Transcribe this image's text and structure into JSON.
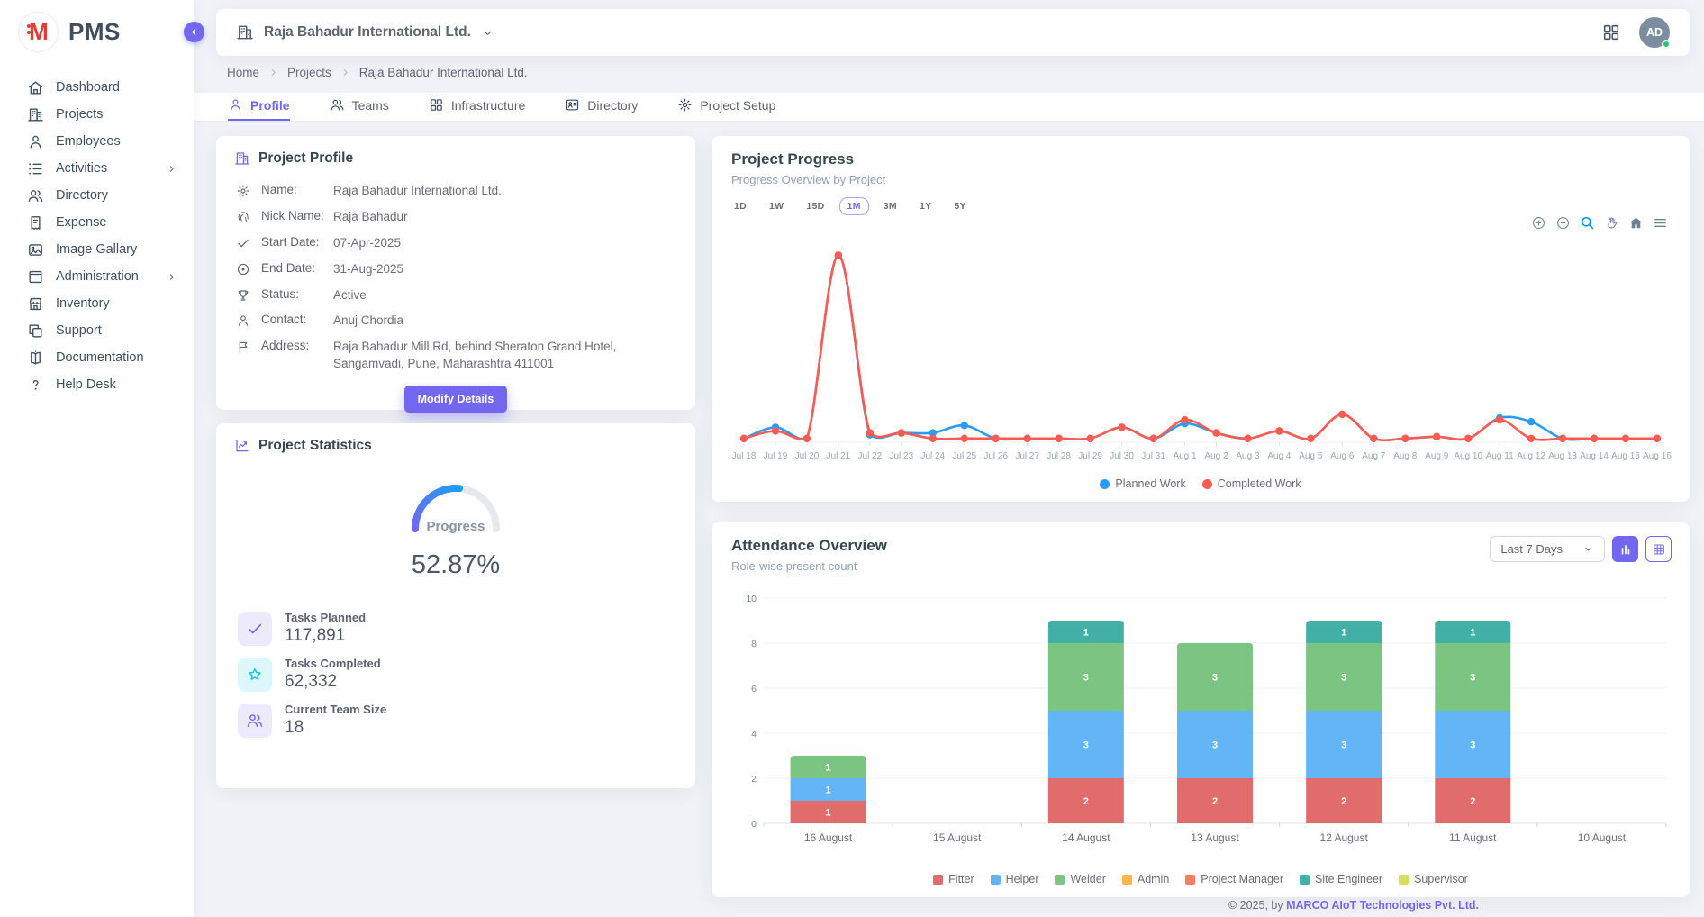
{
  "app": {
    "name": "PMS",
    "logo_letter": "M"
  },
  "sidebar": {
    "items": [
      {
        "label": "Dashboard",
        "icon": "home",
        "submenu": false
      },
      {
        "label": "Projects",
        "icon": "building",
        "submenu": false
      },
      {
        "label": "Employees",
        "icon": "person",
        "submenu": false
      },
      {
        "label": "Activities",
        "icon": "list",
        "submenu": true
      },
      {
        "label": "Directory",
        "icon": "people",
        "submenu": false
      },
      {
        "label": "Expense",
        "icon": "receipt",
        "submenu": false
      },
      {
        "label": "Image Gallary",
        "icon": "image",
        "submenu": false
      },
      {
        "label": "Administration",
        "icon": "box",
        "submenu": true
      },
      {
        "label": "Inventory",
        "icon": "store",
        "submenu": false
      },
      {
        "label": "Support",
        "icon": "copy",
        "submenu": false
      },
      {
        "label": "Documentation",
        "icon": "book",
        "submenu": false
      },
      {
        "label": "Help Desk",
        "icon": "help",
        "submenu": false
      }
    ]
  },
  "header": {
    "company": "Raja Bahadur International Ltd.",
    "avatar_initials": "AD"
  },
  "breadcrumb": [
    "Home",
    "Projects",
    "Raja Bahadur International Ltd."
  ],
  "tabs": [
    {
      "label": "Profile",
      "icon": "person",
      "active": true
    },
    {
      "label": "Teams",
      "icon": "people",
      "active": false
    },
    {
      "label": "Infrastructure",
      "icon": "grid",
      "active": false
    },
    {
      "label": "Directory",
      "icon": "idcard",
      "active": false
    },
    {
      "label": "Project Setup",
      "icon": "gear",
      "active": false
    }
  ],
  "profile_card": {
    "title": "Project Profile",
    "rows": [
      {
        "icon": "gear",
        "label": "Name:",
        "value": "Raja Bahadur International Ltd."
      },
      {
        "icon": "finger",
        "label": "Nick Name:",
        "value": "Raja Bahadur"
      },
      {
        "icon": "check",
        "label": "Start Date:",
        "value": "07-Apr-2025"
      },
      {
        "icon": "target",
        "label": "End Date:",
        "value": "31-Aug-2025"
      },
      {
        "icon": "trophy",
        "label": "Status:",
        "value": "Active"
      },
      {
        "icon": "person",
        "label": "Contact:",
        "value": "Anuj Chordia"
      },
      {
        "icon": "flag",
        "label": "Address:",
        "value": "Raja Bahadur Mill Rd, behind Sheraton Grand Hotel, Sangamvadi, Pune, Maharashtra 411001"
      }
    ],
    "button_label": "Modify Details"
  },
  "stats_card": {
    "title": "Project Statistics",
    "gauge": {
      "label": "Progress",
      "value_text": "52.87%",
      "percent": 52.87,
      "color_start": "#7367f0",
      "color_end": "#1f9ef2",
      "track_color": "#e7e8ec"
    },
    "items": [
      {
        "icon": "check",
        "theme": "purple",
        "label": "Tasks Planned",
        "value": "117,891"
      },
      {
        "icon": "star",
        "theme": "cyan",
        "label": "Tasks Completed",
        "value": "62,332"
      },
      {
        "icon": "people",
        "theme": "purple",
        "label": "Current Team Size",
        "value": "18"
      }
    ]
  },
  "progress_card": {
    "title": "Project Progress",
    "subtitle": "Progress Overview by Project",
    "ranges": [
      "1D",
      "1W",
      "15D",
      "1M",
      "3M",
      "1Y",
      "5Y"
    ],
    "active_range": "1M",
    "toolbar_icons": [
      "zoomin",
      "zoomout",
      "search",
      "hand",
      "househ",
      "menu"
    ],
    "chart_data": {
      "type": "line",
      "x": [
        "Jul 18",
        "Jul 19",
        "Jul 20",
        "Jul 21",
        "Jul 22",
        "Jul 23",
        "Jul 24",
        "Jul 25",
        "Jul 26",
        "Jul 27",
        "Jul 28",
        "Jul 29",
        "Jul 30",
        "Jul 31",
        "Aug 1",
        "Aug 2",
        "Aug 3",
        "Aug 4",
        "Aug 5",
        "Aug 6",
        "Aug 7",
        "Aug 8",
        "Aug 9",
        "Aug 10",
        "Aug 11",
        "Aug 12",
        "Aug 13",
        "Aug 14",
        "Aug 15",
        "Aug 16"
      ],
      "series": [
        {
          "name": "Planned Work",
          "color": "#2b9af3",
          "values": [
            2,
            8,
            2,
            100,
            4,
            5,
            5,
            9,
            2,
            2,
            2,
            2,
            8,
            2,
            10,
            5,
            2,
            6,
            2,
            15,
            2,
            2,
            3,
            2,
            13,
            11,
            2,
            2,
            2,
            2
          ]
        },
        {
          "name": "Completed Work",
          "color": "#ff5b50",
          "values": [
            2,
            6,
            2,
            100,
            5,
            5,
            2,
            2,
            2,
            2,
            2,
            2,
            8,
            2,
            12,
            5,
            2,
            6,
            2,
            15,
            2,
            2,
            3,
            2,
            12,
            2,
            2,
            2,
            2,
            2
          ]
        }
      ],
      "ylim": [
        0,
        105
      ],
      "grid": false,
      "legend_position": "bottom"
    }
  },
  "attendance_card": {
    "title": "Attendance Overview",
    "subtitle": "Role-wise present count",
    "filter_value": "Last 7 Days",
    "chart_data": {
      "type": "stacked-bar",
      "categories": [
        "16 August",
        "15 August",
        "14 August",
        "13 August",
        "12 August",
        "11 August",
        "10 August"
      ],
      "series": [
        {
          "name": "Fitter",
          "color": "#e06c6c",
          "values": [
            1,
            0,
            2,
            2,
            2,
            2,
            0
          ]
        },
        {
          "name": "Helper",
          "color": "#64b5f6",
          "values": [
            1,
            0,
            3,
            3,
            3,
            3,
            0
          ]
        },
        {
          "name": "Welder",
          "color": "#7cc482",
          "values": [
            1,
            0,
            3,
            3,
            3,
            3,
            0
          ]
        },
        {
          "name": "Admin",
          "color": "#ffb64c",
          "values": [
            0,
            0,
            0,
            0,
            0,
            0,
            0
          ]
        },
        {
          "name": "Project Manager",
          "color": "#fd7f5f",
          "values": [
            0,
            0,
            0,
            0,
            0,
            0,
            0
          ]
        },
        {
          "name": "Site Engineer",
          "color": "#43b0a8",
          "values": [
            0,
            0,
            1,
            0,
            1,
            1,
            0
          ]
        },
        {
          "name": "Supervisor",
          "color": "#d4e157",
          "values": [
            0,
            0,
            0,
            0,
            0,
            0,
            0
          ]
        }
      ],
      "ylim": [
        0,
        10
      ],
      "yticks": [
        0,
        2,
        4,
        6,
        8,
        10
      ],
      "grid": true,
      "legend_position": "bottom"
    }
  },
  "footer": {
    "prefix": "© 2025, by ",
    "company": "MARCO AIoT Technologies Pvt. Ltd."
  }
}
